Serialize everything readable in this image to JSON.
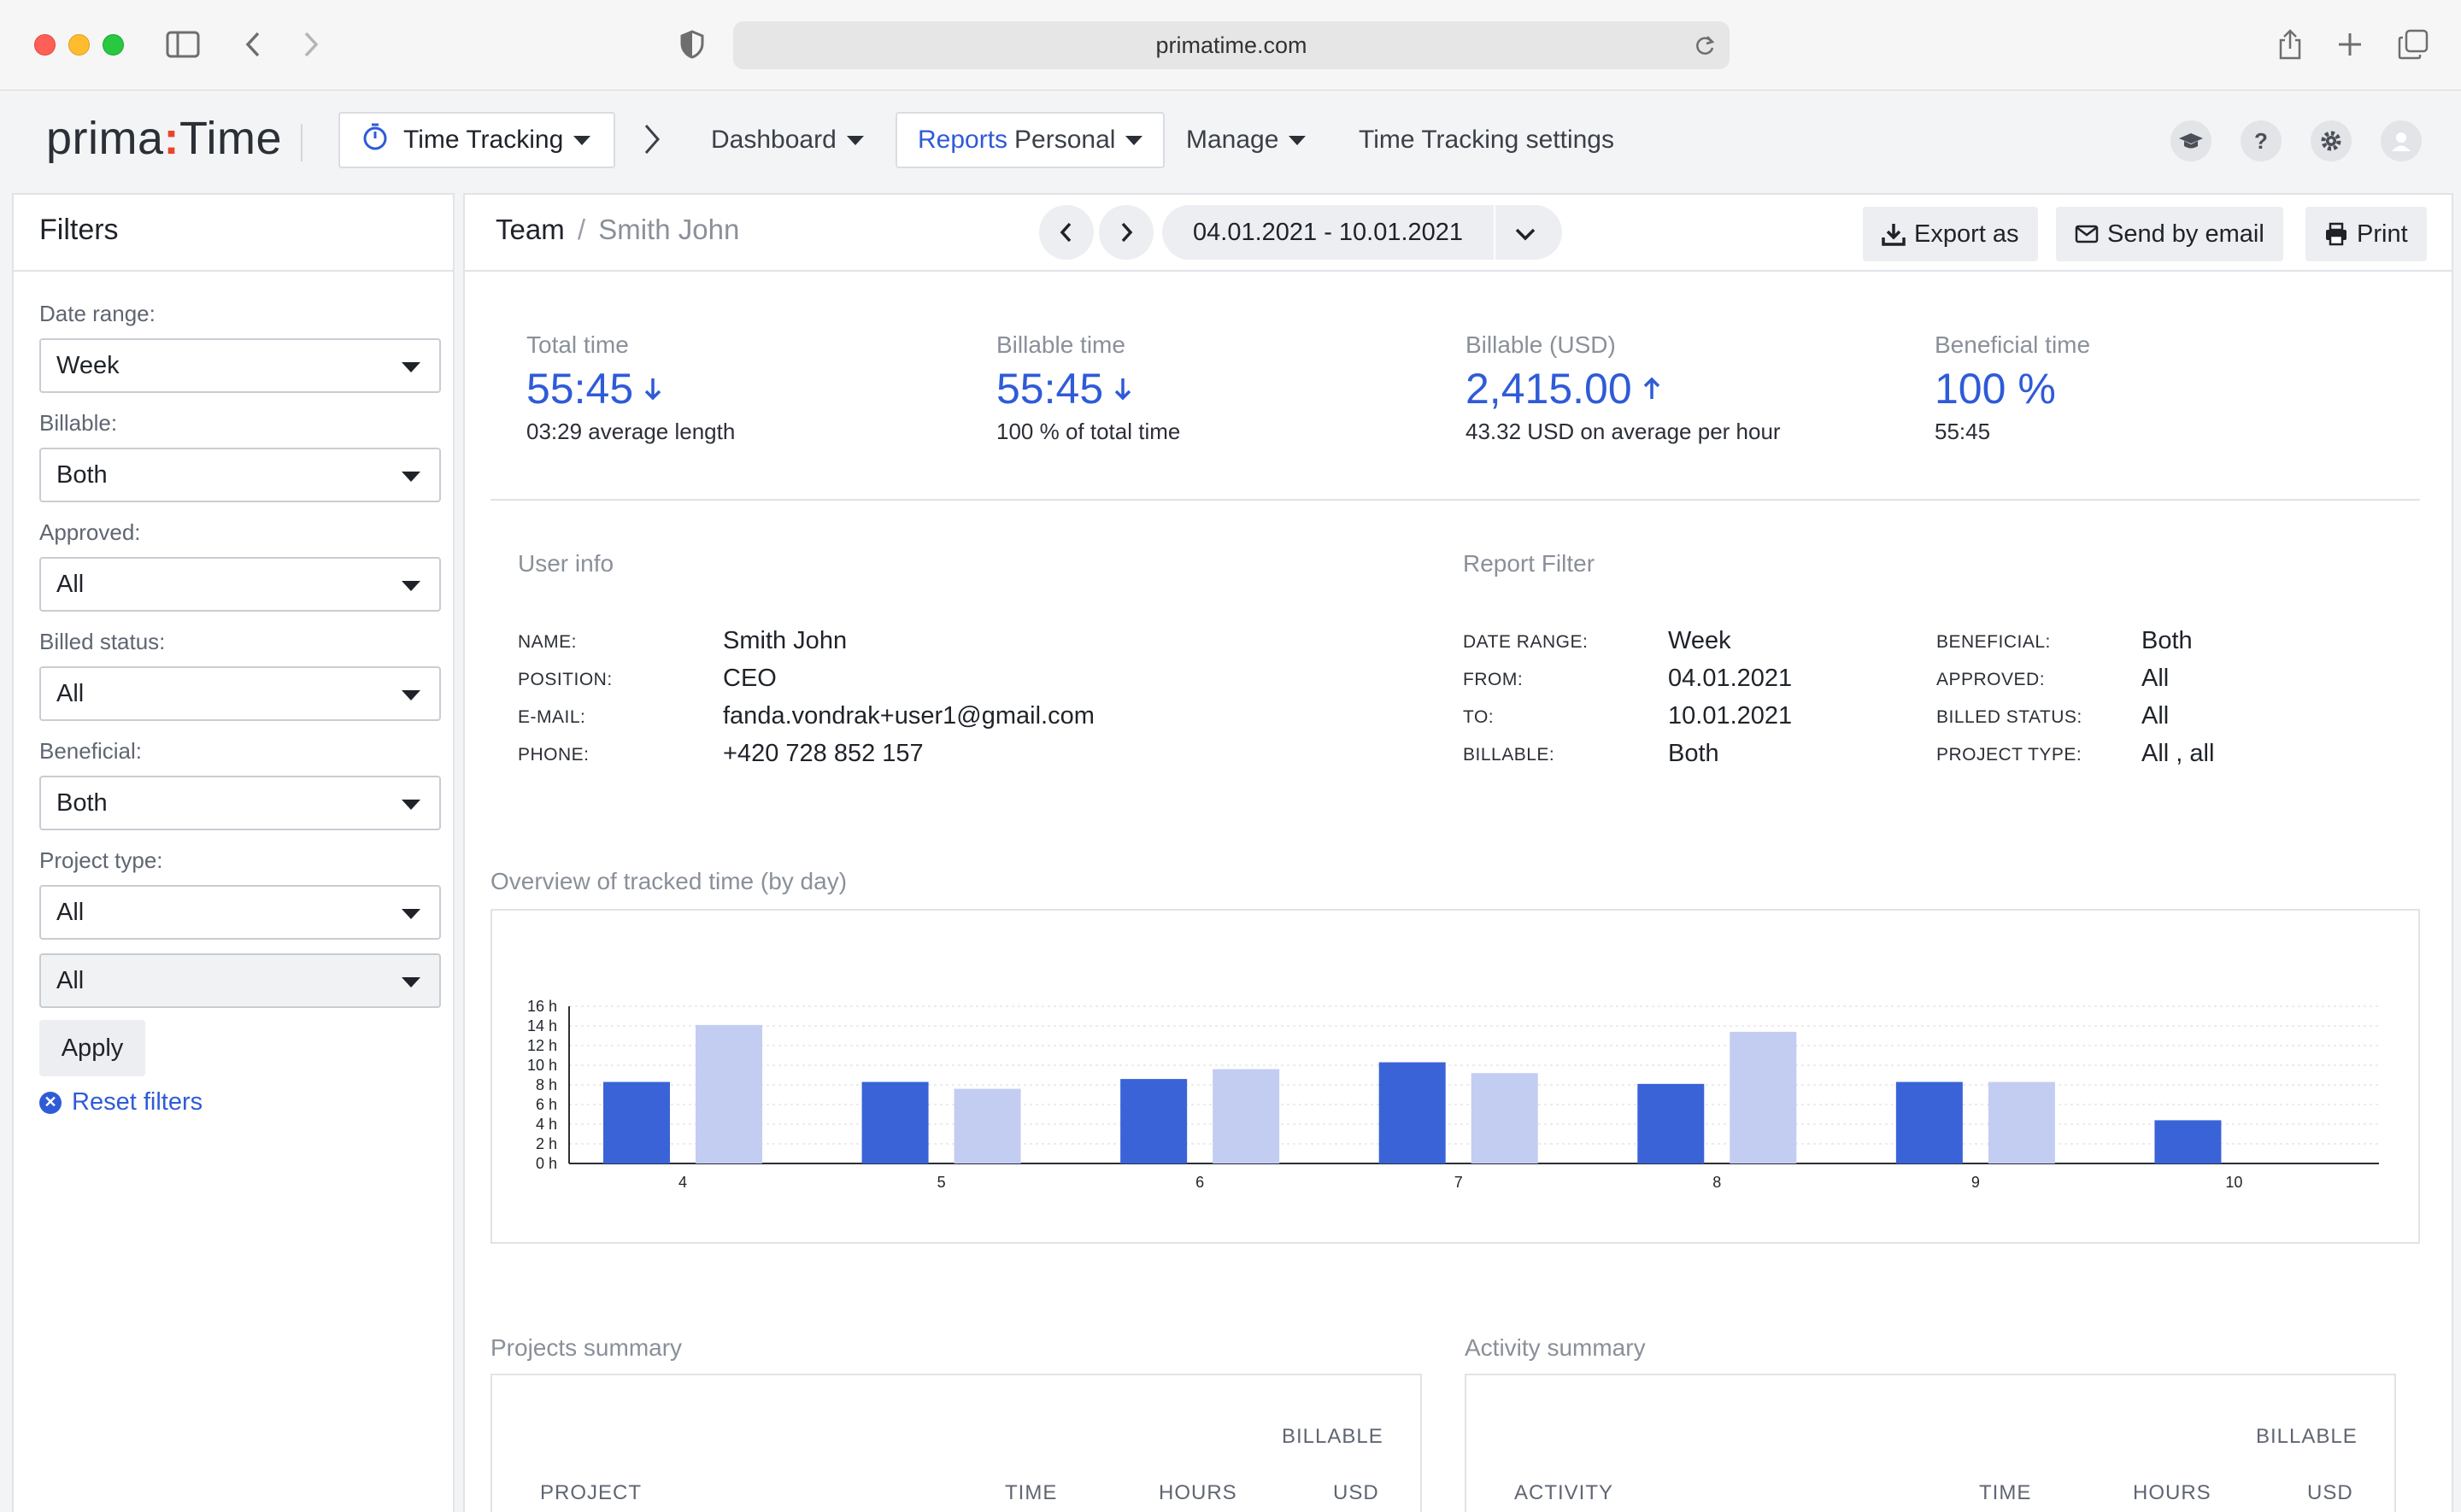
{
  "browser": {
    "url": "primatime.com"
  },
  "header": {
    "logo_left": "prima",
    "logo_colon": ":",
    "logo_right": "Time",
    "module": "Time Tracking",
    "nav": {
      "dashboard": "Dashboard",
      "reports_prefix": "Reports",
      "reports_suffix": "Personal",
      "manage": "Manage",
      "settings": "Time Tracking settings"
    },
    "icons": [
      "graduation-cap-icon",
      "help-icon",
      "gear-icon",
      "avatar-icon"
    ]
  },
  "filters": {
    "title": "Filters",
    "date_range_label": "Date range:",
    "date_range_value": "Week",
    "billable_label": "Billable:",
    "billable_value": "Both",
    "approved_label": "Approved:",
    "approved_value": "All",
    "billed_status_label": "Billed status:",
    "billed_status_value": "All",
    "beneficial_label": "Beneficial:",
    "beneficial_value": "Both",
    "project_type_label": "Project type:",
    "project_type_value": "All",
    "project_subtype_value": "All",
    "apply": "Apply",
    "reset": "Reset filters"
  },
  "toolbar": {
    "team": "Team",
    "sep": "/",
    "person": "Smith John",
    "date_range": "04.01.2021 - 10.01.2021",
    "export": "Export as",
    "email": "Send by email",
    "print": "Print"
  },
  "stats": {
    "total_label": "Total time",
    "total_value": "55:45",
    "total_sub": "03:29 average length",
    "billable_label": "Billable time",
    "billable_value": "55:45",
    "billable_sub": "100 % of total time",
    "usd_label": "Billable (USD)",
    "usd_value": "2,415.00",
    "usd_sub": "43.32 USD on average per hour",
    "beneficial_label": "Beneficial time",
    "beneficial_value": "100 %",
    "beneficial_sub": "55:45",
    "colors": {
      "accent": "#2f5bd7"
    }
  },
  "user_info": {
    "title": "User info",
    "name_key": "NAME:",
    "name": "Smith John",
    "position_key": "POSITION:",
    "position": "CEO",
    "email_key": "E-MAIL:",
    "email": "fanda.vondrak+user1@gmail.com",
    "phone_key": "PHONE:",
    "phone": "+420 728 852 157"
  },
  "report_filter": {
    "title": "Report Filter",
    "date_range_key": "DATE RANGE:",
    "date_range": "Week",
    "from_key": "FROM:",
    "from": "04.01.2021",
    "to_key": "TO:",
    "to": "10.01.2021",
    "billable_key": "BILLABLE:",
    "billable": "Both",
    "beneficial_key": "BENEFICIAL:",
    "beneficial": "Both",
    "approved_key": "APPROVED:",
    "approved": "All",
    "billed_status_key": "BILLED STATUS:",
    "billed_status": "All",
    "project_type_key": "PROJECT TYPE:",
    "project_type": "All , all"
  },
  "overview": {
    "title": "Overview of tracked time (by day)"
  },
  "chart_data": {
    "type": "bar",
    "categories": [
      "4",
      "5",
      "6",
      "7",
      "8",
      "9",
      "10"
    ],
    "y_ticks": [
      "0 h",
      "2 h",
      "4 h",
      "6 h",
      "8 h",
      "10 h",
      "12 h",
      "14 h",
      "16 h"
    ],
    "ylim": [
      0,
      16
    ],
    "grid": true,
    "series": [
      {
        "values": [
          8.3,
          8.3,
          8.6,
          10.3,
          8.1,
          8.3,
          4.4
        ],
        "color": "#3a63d8"
      },
      {
        "values": [
          14.1,
          7.6,
          9.6,
          9.2,
          13.4,
          8.3,
          0
        ],
        "color": "#c3cdf2"
      }
    ]
  },
  "projects_summary": {
    "title": "Projects summary",
    "billable_head": "BILLABLE",
    "col_project": "PROJECT",
    "col_time": "TIME",
    "col_hours": "HOURS",
    "col_usd": "USD"
  },
  "activity_summary": {
    "title": "Activity summary",
    "billable_head": "BILLABLE",
    "col_activity": "ACTIVITY",
    "col_time": "TIME",
    "col_hours": "HOURS",
    "col_usd": "USD"
  }
}
